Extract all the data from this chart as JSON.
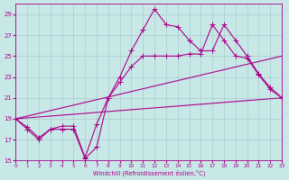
{
  "xlabel": "Windchill (Refroidissement éolien,°C)",
  "xlim": [
    0,
    23
  ],
  "ylim": [
    15,
    30
  ],
  "x_ticks": [
    0,
    1,
    2,
    3,
    4,
    5,
    6,
    7,
    8,
    9,
    10,
    11,
    12,
    13,
    14,
    15,
    16,
    17,
    18,
    19,
    20,
    21,
    22,
    23
  ],
  "y_ticks": [
    15,
    17,
    19,
    21,
    23,
    25,
    27,
    29
  ],
  "bg_color": "#c8e8e8",
  "grid_color": "#a8cccc",
  "line_color": "#aa0088",
  "line1_x": [
    0,
    1,
    2,
    3,
    4,
    5,
    6,
    7,
    8,
    9,
    10,
    11,
    12,
    13,
    14,
    15,
    16,
    17,
    18,
    19,
    20,
    21,
    22,
    23
  ],
  "line1_y": [
    19,
    18,
    17,
    18,
    18,
    18,
    15.2,
    16.3,
    21,
    23,
    25.5,
    27.5,
    29.5,
    28,
    27.8,
    26.5,
    25.5,
    25.5,
    28,
    26.5,
    25,
    23.3,
    22,
    21
  ],
  "line2_x": [
    0,
    1,
    2,
    3,
    4,
    5,
    6,
    7,
    8,
    9,
    10,
    11,
    12,
    13,
    14,
    15,
    16,
    17,
    18,
    19,
    20,
    21,
    22,
    23
  ],
  "line2_y": [
    19,
    18.2,
    17.2,
    18,
    18.3,
    18.3,
    15.3,
    18.5,
    21,
    22.5,
    24,
    25,
    25,
    25,
    25,
    25.2,
    25.2,
    28,
    26.5,
    25,
    24.8,
    23.2,
    21.8,
    21
  ],
  "line3_x": [
    0,
    23
  ],
  "line3_y": [
    19,
    21
  ],
  "line4_x": [
    0,
    23
  ],
  "line4_y": [
    19,
    25
  ]
}
